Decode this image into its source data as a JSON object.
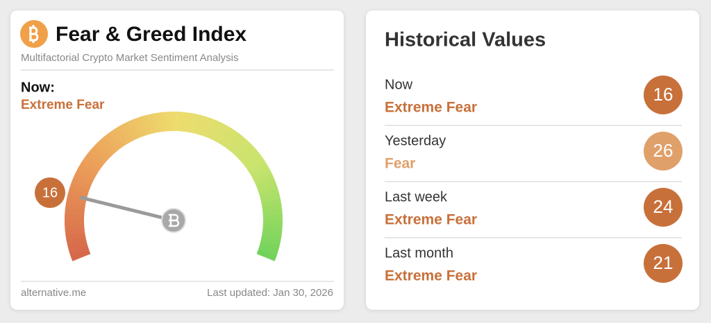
{
  "index_card": {
    "title": "Fear & Greed Index",
    "subtitle": "Multifactorial Crypto Market Sentiment Analysis",
    "now_label": "Now:",
    "now_classification": "Extreme Fear",
    "gauge": {
      "value": 16,
      "range": [
        0,
        100
      ],
      "color": "#c8703a"
    },
    "source": "alternative.me",
    "updated": "Last updated: Jan 30, 2026"
  },
  "history_card": {
    "title": "Historical Values",
    "rows": [
      {
        "label": "Now",
        "classification": "Extreme Fear",
        "value": 16,
        "color": "#c8703a"
      },
      {
        "label": "Yesterday",
        "classification": "Fear",
        "value": 26,
        "color": "#e0a06a"
      },
      {
        "label": "Last week",
        "classification": "Extreme Fear",
        "value": 24,
        "color": "#c8703a"
      },
      {
        "label": "Last month",
        "classification": "Extreme Fear",
        "value": 21,
        "color": "#c8703a"
      }
    ]
  }
}
